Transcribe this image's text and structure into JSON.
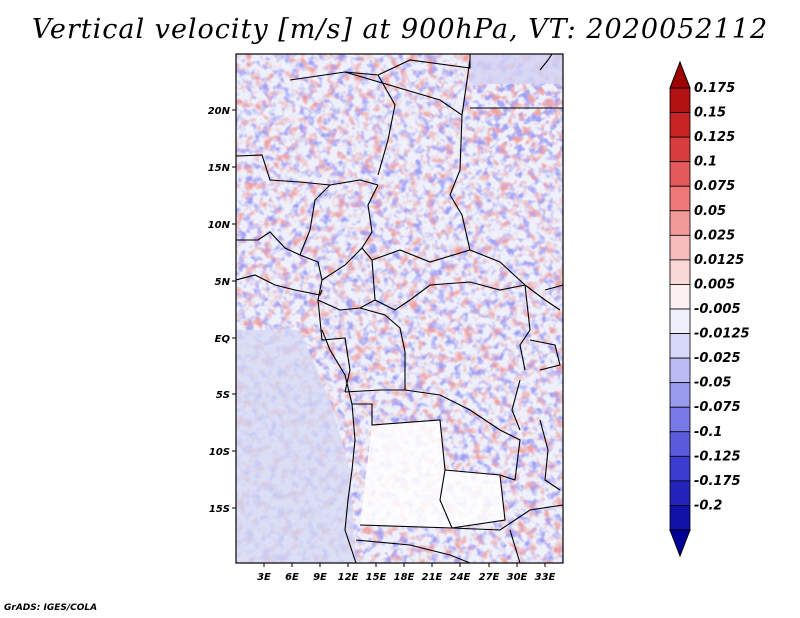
{
  "title": "Vertical velocity [m/s] at 900hPa, VT: 2020052112",
  "credit": "GrADS: IGES/COLA",
  "lat_labels": [
    "20N",
    "15N",
    "10N",
    "5N",
    "EQ",
    "5S",
    "10S",
    "15S"
  ],
  "lon_labels": [
    "3E",
    "6E",
    "9E",
    "12E",
    "15E",
    "18E",
    "21E",
    "24E",
    "27E",
    "30E",
    "33E"
  ],
  "colorbar": {
    "labels": [
      "0.175",
      "0.15",
      "0.125",
      "0.1",
      "0.075",
      "0.05",
      "0.025",
      "0.0125",
      "0.005",
      "-0.005",
      "-0.0125",
      "-0.025",
      "-0.05",
      "-0.075",
      "-0.1",
      "-0.125",
      "-0.175",
      "-0.2"
    ],
    "colors": [
      "#b31212",
      "#c82424",
      "#d83c3c",
      "#e45a5a",
      "#ec7878",
      "#f29a9a",
      "#f7bcbc",
      "#fbd8d8",
      "#fdf0f0",
      "#f0f0fd",
      "#d8d8fb",
      "#bcbcf5",
      "#9a9aee",
      "#7878e6",
      "#5a5adc",
      "#3c3cd0",
      "#2424bd",
      "#1212a8"
    ],
    "top_color": "#a00000",
    "bottom_color": "#000099"
  }
}
